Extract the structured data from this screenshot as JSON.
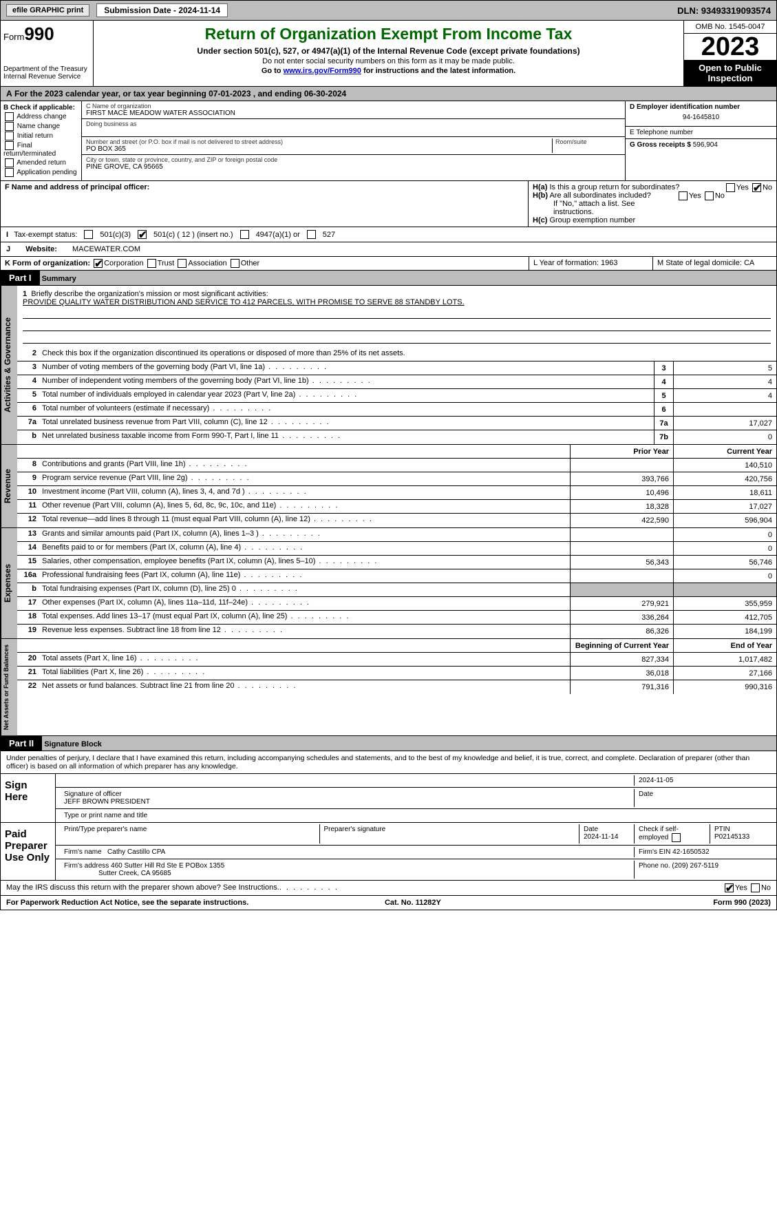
{
  "topbar": {
    "efile": "efile GRAPHIC print",
    "submission": "Submission Date - 2024-11-14",
    "dln": "DLN: 93493319093574"
  },
  "header": {
    "form_label": "Form",
    "form_num": "990",
    "dept": "Department of the Treasury",
    "irs": "Internal Revenue Service",
    "title": "Return of Organization Exempt From Income Tax",
    "sub": "Under section 501(c), 527, or 4947(a)(1) of the Internal Revenue Code (except private foundations)",
    "l2": "Do not enter social security numbers on this form as it may be made public.",
    "l3_pre": "Go to ",
    "l3_link": "www.irs.gov/Form990",
    "l3_post": " for instructions and the latest information.",
    "omb": "OMB No. 1545-0047",
    "year": "2023",
    "insp": "Open to Public Inspection"
  },
  "A": {
    "text": "For the 2023 calendar year, or tax year beginning 07-01-2023    , and ending 06-30-2024"
  },
  "B": {
    "title": "B Check if applicable:",
    "items": [
      "Address change",
      "Name change",
      "Initial return",
      "Final return/terminated",
      "Amended return",
      "Application pending"
    ]
  },
  "C": {
    "name_lbl": "C Name of organization",
    "name": "FIRST MACE MEADOW WATER ASSOCIATION",
    "dba_lbl": "Doing business as",
    "dba": "",
    "addr_lbl": "Number and street (or P.O. box if mail is not delivered to street address)",
    "addr": "PO BOX 365",
    "room_lbl": "Room/suite",
    "city_lbl": "City or town, state or province, country, and ZIP or foreign postal code",
    "city": "PINE GROVE, CA  95665"
  },
  "D": {
    "lbl": "D Employer identification number",
    "val": "94-1645810"
  },
  "E": {
    "lbl": "E Telephone number",
    "val": ""
  },
  "G": {
    "lbl": "G Gross receipts $",
    "val": "596,904"
  },
  "F": {
    "lbl": "F  Name and address of principal officer:",
    "val": ""
  },
  "H": {
    "a": "Is this a group return for subordinates?",
    "a_no": true,
    "b": "Are all subordinates included?",
    "b_note": "If \"No,\" attach a list. See instructions.",
    "c": "Group exemption number"
  },
  "I": {
    "lbl": "Tax-exempt status:",
    "c1": "501(c)(3)",
    "c2": "501(c) ( 12 ) (insert no.)",
    "c3": "4947(a)(1) or",
    "c4": "527"
  },
  "J": {
    "lbl": "Website:",
    "val": "MACEWATER.COM"
  },
  "K": {
    "lbl": "K Form of organization:",
    "c1": "Corporation",
    "c2": "Trust",
    "c3": "Association",
    "c4": "Other"
  },
  "L": {
    "lbl": "L Year of formation: 1963"
  },
  "M": {
    "lbl": "M State of legal domicile: CA"
  },
  "part1": {
    "bar": "Part I",
    "title": "Summary"
  },
  "mission": {
    "lbl": "Briefly describe the organization's mission or most significant activities:",
    "txt": "PROVIDE QUALITY WATER DISTRIBUTION AND SERVICE TO 412 PARCELS, WITH PROMISE TO SERVE 88 STANDBY LOTS."
  },
  "gov": {
    "l2": "Check this box        if the organization discontinued its operations or disposed of more than 25% of its net assets.",
    "rows": [
      {
        "n": "3",
        "t": "Number of voting members of the governing body (Part VI, line 1a)",
        "b": "3",
        "v": "5"
      },
      {
        "n": "4",
        "t": "Number of independent voting members of the governing body (Part VI, line 1b)",
        "b": "4",
        "v": "4"
      },
      {
        "n": "5",
        "t": "Total number of individuals employed in calendar year 2023 (Part V, line 2a)",
        "b": "5",
        "v": "4"
      },
      {
        "n": "6",
        "t": "Total number of volunteers (estimate if necessary)",
        "b": "6",
        "v": ""
      },
      {
        "n": "7a",
        "t": "Total unrelated business revenue from Part VIII, column (C), line 12",
        "b": "7a",
        "v": "17,027"
      },
      {
        "n": "b",
        "t": "Net unrelated business taxable income from Form 990-T, Part I, line 11",
        "b": "7b",
        "v": "0"
      }
    ]
  },
  "cols": {
    "prior": "Prior Year",
    "current": "Current Year",
    "boy": "Beginning of Current Year",
    "eoy": "End of Year"
  },
  "rev": [
    {
      "n": "8",
      "t": "Contributions and grants (Part VIII, line 1h)",
      "p": "",
      "c": "140,510"
    },
    {
      "n": "9",
      "t": "Program service revenue (Part VIII, line 2g)",
      "p": "393,766",
      "c": "420,756"
    },
    {
      "n": "10",
      "t": "Investment income (Part VIII, column (A), lines 3, 4, and 7d )",
      "p": "10,496",
      "c": "18,611"
    },
    {
      "n": "11",
      "t": "Other revenue (Part VIII, column (A), lines 5, 6d, 8c, 9c, 10c, and 11e)",
      "p": "18,328",
      "c": "17,027"
    },
    {
      "n": "12",
      "t": "Total revenue—add lines 8 through 11 (must equal Part VIII, column (A), line 12)",
      "p": "422,590",
      "c": "596,904"
    }
  ],
  "exp": [
    {
      "n": "13",
      "t": "Grants and similar amounts paid (Part IX, column (A), lines 1–3 )",
      "p": "",
      "c": "0"
    },
    {
      "n": "14",
      "t": "Benefits paid to or for members (Part IX, column (A), line 4)",
      "p": "",
      "c": "0"
    },
    {
      "n": "15",
      "t": "Salaries, other compensation, employee benefits (Part IX, column (A), lines 5–10)",
      "p": "56,343",
      "c": "56,746"
    },
    {
      "n": "16a",
      "t": "Professional fundraising fees (Part IX, column (A), line 11e)",
      "p": "",
      "c": "0"
    },
    {
      "n": "b",
      "t": "Total fundraising expenses (Part IX, column (D), line 25) 0",
      "p": "grey",
      "c": "grey"
    },
    {
      "n": "17",
      "t": "Other expenses (Part IX, column (A), lines 11a–11d, 11f–24e)",
      "p": "279,921",
      "c": "355,959"
    },
    {
      "n": "18",
      "t": "Total expenses. Add lines 13–17 (must equal Part IX, column (A), line 25)",
      "p": "336,264",
      "c": "412,705"
    },
    {
      "n": "19",
      "t": "Revenue less expenses. Subtract line 18 from line 12",
      "p": "86,326",
      "c": "184,199"
    }
  ],
  "net": [
    {
      "n": "20",
      "t": "Total assets (Part X, line 16)",
      "p": "827,334",
      "c": "1,017,482"
    },
    {
      "n": "21",
      "t": "Total liabilities (Part X, line 26)",
      "p": "36,018",
      "c": "27,166"
    },
    {
      "n": "22",
      "t": "Net assets or fund balances. Subtract line 21 from line 20",
      "p": "791,316",
      "c": "990,316"
    }
  ],
  "vtabs": {
    "gov": "Activities & Governance",
    "rev": "Revenue",
    "exp": "Expenses",
    "net": "Net Assets or Fund Balances"
  },
  "part2": {
    "bar": "Part II",
    "title": "Signature Block"
  },
  "sig": {
    "decl": "Under penalties of perjury, I declare that I have examined this return, including accompanying schedules and statements, and to the best of my knowledge and belief, it is true, correct, and complete. Declaration of preparer (other than officer) is based on all information of which preparer has any knowledge.",
    "sign_here": "Sign Here",
    "paid": "Paid Preparer Use Only",
    "date1": "2024-11-05",
    "officer_lbl": "Signature of officer",
    "officer": "JEFF BROWN PRESIDENT",
    "type_lbl": "Type or print name and title",
    "date_lbl": "Date",
    "prep_name_lbl": "Print/Type preparer's name",
    "prep_sig_lbl": "Preparer's signature",
    "prep_date": "2024-11-14",
    "self_lbl": "Check         if self-employed",
    "ptin_lbl": "PTIN",
    "ptin": "P02145133",
    "firm_name_lbl": "Firm's name",
    "firm_name": "Cathy Castillo CPA",
    "firm_ein_lbl": "Firm's EIN",
    "firm_ein": "42-1650532",
    "firm_addr_lbl": "Firm's address",
    "firm_addr": "460 Sutter Hill Rd Ste E POBox 1355",
    "firm_city": "Sutter Creek, CA  95685",
    "phone_lbl": "Phone no.",
    "phone": "(209) 267-5119",
    "discuss": "May the IRS discuss this return with the preparer shown above? See Instructions."
  },
  "foot": {
    "l": "For Paperwork Reduction Act Notice, see the separate instructions.",
    "c": "Cat. No. 11282Y",
    "r": "Form 990 (2023)"
  }
}
